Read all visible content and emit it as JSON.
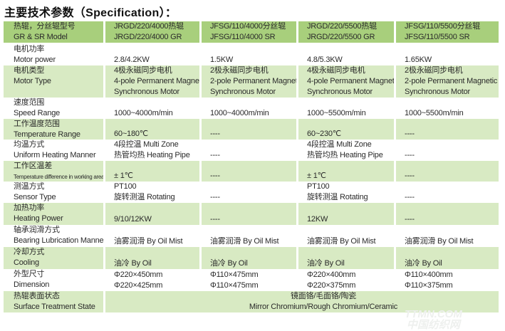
{
  "title": "主要技术参数（Specification）：",
  "rows": [
    {
      "style": "head",
      "label": [
        "热辊，分丝辊型号",
        "GR & SR Model"
      ],
      "values": [
        [
          "JRGD/220/4000热辊",
          "JRGD/220/4000 GR"
        ],
        [
          "JFSG/110/4000分丝辊",
          "JFSG/110/4000 SR"
        ],
        [
          "JRGD/220/5500热辊",
          "JRGD/220/5500 GR"
        ],
        [
          "JFSG/110/5500分丝辊",
          "JFSG/110/5500 SR"
        ]
      ]
    },
    {
      "style": "white",
      "label": [
        "电机功率",
        "Motor power"
      ],
      "values": [
        [
          "2.8/4.2KW"
        ],
        [
          "1.5KW"
        ],
        [
          "4.8/5.3KW"
        ],
        [
          "1.65KW"
        ]
      ]
    },
    {
      "style": "green",
      "label": [
        "电机类型",
        "Motor Type"
      ],
      "values": [
        [
          "4极永磁同步电机",
          "4-pole Permanent Magnetic",
          "Synchronous Motor"
        ],
        [
          "2极永磁同步电机",
          "2-pole Permanent Magnetic",
          "Synchronous Motor"
        ],
        [
          "4极永磁同步电机",
          "4-pole Permanent Magnetic",
          "Synchronous Motor"
        ],
        [
          "2极永磁同步电机",
          "2-pole Permanent Magnetic",
          "Synchronous Motor"
        ]
      ]
    },
    {
      "style": "white",
      "label": [
        "速度范围",
        "Speed Range"
      ],
      "values": [
        [
          "1000~4000m/min"
        ],
        [
          "1000~4000m/min"
        ],
        [
          "1000~5500m/min"
        ],
        [
          "1000~5500m/min"
        ]
      ]
    },
    {
      "style": "green",
      "label": [
        "工作温度范围",
        "Temperature Range"
      ],
      "values": [
        [
          "60~180℃"
        ],
        [
          "----"
        ],
        [
          "60~230℃"
        ],
        [
          "----"
        ]
      ]
    },
    {
      "style": "white",
      "label": [
        "均温方式",
        "Uniform Heating Manner"
      ],
      "values": [
        [
          "4段控温 Multi Zone",
          "热管均热 Heating Pipe"
        ],
        [
          "----"
        ],
        [
          "4段控温 Multi Zone",
          "热管均热 Heating Pipe"
        ],
        [
          "----"
        ]
      ]
    },
    {
      "style": "green",
      "small": true,
      "label": [
        "工作区温差",
        "Temperature difference in working area"
      ],
      "values": [
        [
          "± 1℃"
        ],
        [
          "----"
        ],
        [
          "± 1℃"
        ],
        [
          "----"
        ]
      ]
    },
    {
      "style": "white",
      "label": [
        "测温方式",
        "Sensor Type"
      ],
      "values": [
        [
          "PT100",
          "旋转测温 Rotating"
        ],
        [
          "----"
        ],
        [
          "PT100",
          "旋转测温 Rotating"
        ],
        [
          "----"
        ]
      ]
    },
    {
      "style": "green",
      "label": [
        "加热功率",
        "Heating Power"
      ],
      "values": [
        [
          "9/10/12KW"
        ],
        [
          "----"
        ],
        [
          "12KW"
        ],
        [
          "----"
        ]
      ]
    },
    {
      "style": "white",
      "label": [
        "轴承润滑方式",
        "Bearing Lubrication Manner"
      ],
      "values": [
        [
          "油雾润滑 By Oil Mist"
        ],
        [
          "油雾润滑 By Oil Mist"
        ],
        [
          "油雾润滑 By Oil Mist"
        ],
        [
          "油雾润滑 By Oil Mist"
        ]
      ]
    },
    {
      "style": "green",
      "label": [
        "冷却方式",
        "Cooling"
      ],
      "values": [
        [
          "油冷 By Oil"
        ],
        [
          "油冷 By Oil"
        ],
        [
          "油冷 By Oil"
        ],
        [
          "油冷 By Oil"
        ]
      ]
    },
    {
      "style": "white",
      "label": [
        "外型尺寸",
        "Dimension"
      ],
      "values": [
        [
          "Φ220×450mm",
          "Φ220×425mm"
        ],
        [
          "Φ110×475mm",
          "Φ110×475mm"
        ],
        [
          "Φ220×400mm",
          "Φ220×375mm"
        ],
        [
          "Φ110×400mm",
          "Φ110×375mm"
        ]
      ]
    },
    {
      "style": "green",
      "label": [
        "热辊表面状态",
        "Surface Treatment State"
      ],
      "span": [
        "镜面铬/毛面铬/陶瓷",
        "Mirror Chromium/Rough Chromium/Ceramic"
      ]
    }
  ],
  "watermark": [
    "TTMN.COM",
    "中国纺织网"
  ],
  "colors": {
    "header_green": "#a8cf7c",
    "row_green": "#d8eac3"
  }
}
